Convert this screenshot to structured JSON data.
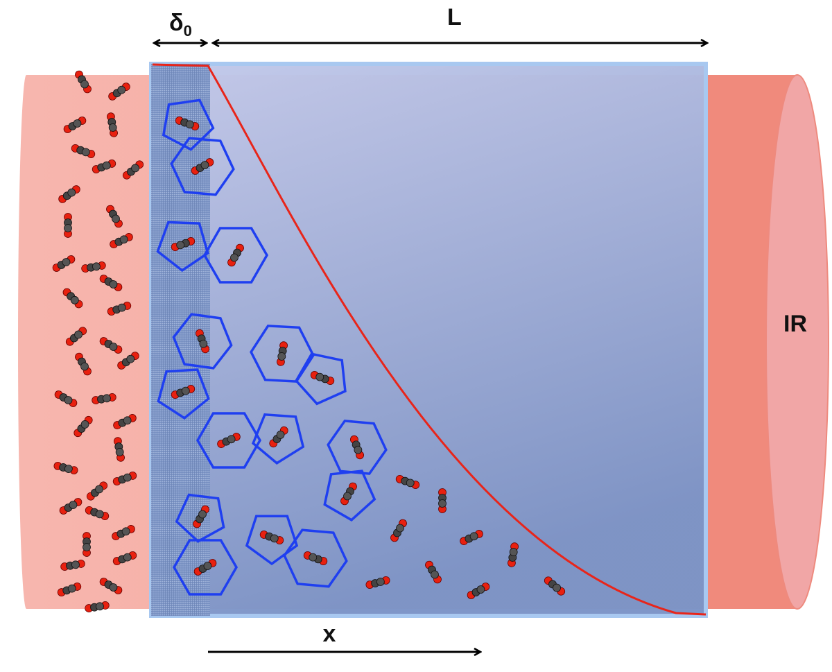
{
  "labels": {
    "delta": {
      "symbol": "δ",
      "subscript": "0"
    },
    "length": "L",
    "source": "IR",
    "axis": "x"
  }
}
